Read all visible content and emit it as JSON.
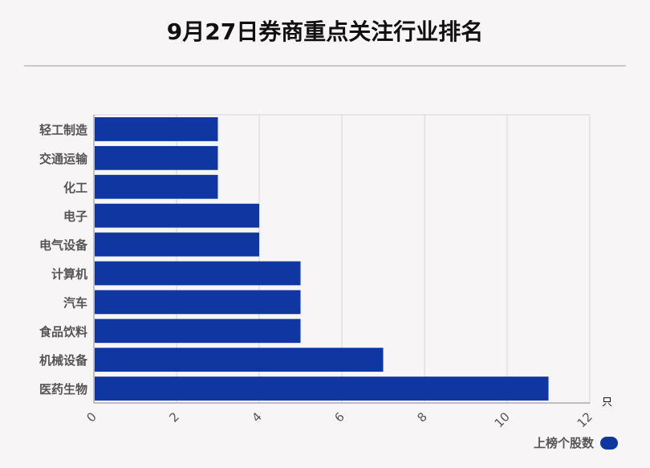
{
  "chart_data": {
    "type": "bar",
    "orientation": "horizontal",
    "title": "9月27日券商重点关注行业排名",
    "categories": [
      "轻工制造",
      "交通运输",
      "化工",
      "电子",
      "电气设备",
      "计算机",
      "汽车",
      "食品饮料",
      "机械设备",
      "医药生物"
    ],
    "series": [
      {
        "name": "上榜个股数",
        "values": [
          3,
          3,
          3,
          4,
          4,
          5,
          5,
          5,
          7,
          11
        ]
      }
    ],
    "xlim": [
      0,
      12
    ],
    "xticks": [
      0,
      2,
      4,
      6,
      8,
      10,
      12
    ],
    "unit": "只",
    "grid": true,
    "legend": "bottom-right",
    "colors": {
      "bar": "#0f36a1",
      "grid": "#d6d6d6"
    }
  }
}
